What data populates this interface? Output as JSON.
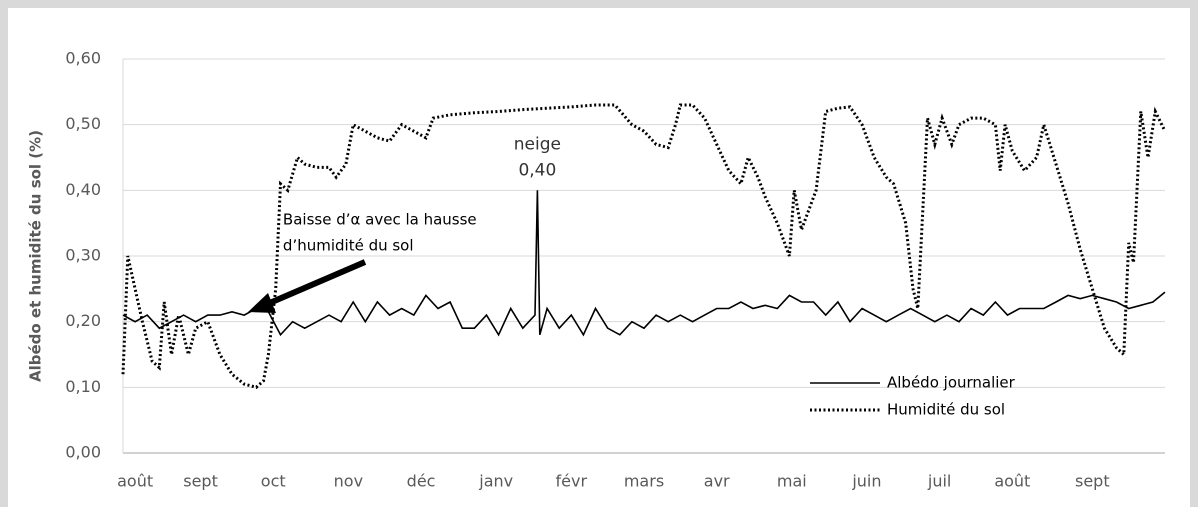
{
  "chart_data": {
    "type": "line",
    "ylabel": "Albédo et humidité du sol (%)",
    "xlim": [
      0,
      430
    ],
    "xticks": [
      {
        "value": 5,
        "label": "août"
      },
      {
        "value": 32,
        "label": "sept"
      },
      {
        "value": 62,
        "label": "oct"
      },
      {
        "value": 93,
        "label": "nov"
      },
      {
        "value": 123,
        "label": "déc"
      },
      {
        "value": 154,
        "label": "janv"
      },
      {
        "value": 185,
        "label": "févr"
      },
      {
        "value": 215,
        "label": "mars"
      },
      {
        "value": 245,
        "label": "avr"
      },
      {
        "value": 276,
        "label": "mai"
      },
      {
        "value": 307,
        "label": "juin"
      },
      {
        "value": 337,
        "label": "juil"
      },
      {
        "value": 367,
        "label": "août"
      },
      {
        "value": 400,
        "label": "sept"
      }
    ],
    "ylim": [
      0,
      0.6
    ],
    "yticks": [
      {
        "value": 0,
        "label": "0,00"
      },
      {
        "value": 0.1,
        "label": "0,10"
      },
      {
        "value": 0.2,
        "label": "0,20"
      },
      {
        "value": 0.3,
        "label": "0,30"
      },
      {
        "value": 0.4,
        "label": "0,40"
      },
      {
        "value": 0.5,
        "label": "0,50"
      },
      {
        "value": 0.6,
        "label": "0,60"
      }
    ],
    "grid": true,
    "legend": "lower right",
    "series": [
      {
        "name": "Albédo journalier",
        "color": "#000000",
        "style": "solid",
        "x": [
          0,
          5,
          10,
          15,
          20,
          25,
          30,
          35,
          40,
          45,
          50,
          55,
          60,
          65,
          70,
          75,
          80,
          85,
          90,
          95,
          100,
          105,
          110,
          115,
          120,
          125,
          130,
          135,
          140,
          145,
          150,
          155,
          160,
          165,
          170,
          171,
          172,
          175,
          180,
          185,
          190,
          195,
          200,
          205,
          210,
          215,
          220,
          225,
          230,
          235,
          240,
          245,
          250,
          255,
          260,
          265,
          270,
          275,
          280,
          285,
          290,
          295,
          300,
          305,
          310,
          315,
          320,
          325,
          330,
          335,
          340,
          345,
          350,
          355,
          360,
          365,
          370,
          375,
          380,
          385,
          390,
          395,
          400,
          405,
          410,
          415,
          420,
          425,
          430
        ],
        "values": [
          0.21,
          0.2,
          0.21,
          0.19,
          0.2,
          0.21,
          0.2,
          0.21,
          0.21,
          0.215,
          0.21,
          0.22,
          0.215,
          0.18,
          0.2,
          0.19,
          0.2,
          0.21,
          0.2,
          0.23,
          0.2,
          0.23,
          0.21,
          0.22,
          0.21,
          0.24,
          0.22,
          0.23,
          0.19,
          0.19,
          0.21,
          0.18,
          0.22,
          0.19,
          0.21,
          0.4,
          0.18,
          0.22,
          0.19,
          0.21,
          0.18,
          0.22,
          0.19,
          0.18,
          0.2,
          0.19,
          0.21,
          0.2,
          0.21,
          0.2,
          0.21,
          0.22,
          0.22,
          0.23,
          0.22,
          0.225,
          0.22,
          0.24,
          0.23,
          0.23,
          0.21,
          0.23,
          0.2,
          0.22,
          0.21,
          0.2,
          0.21,
          0.22,
          0.21,
          0.2,
          0.21,
          0.2,
          0.22,
          0.21,
          0.23,
          0.21,
          0.22,
          0.22,
          0.22,
          0.23,
          0.24,
          0.235,
          0.24,
          0.235,
          0.23,
          0.22,
          0.225,
          0.23,
          0.245
        ]
      },
      {
        "name": "Humidité du sol",
        "color": "#000000",
        "style": "dotted",
        "x": [
          0,
          2,
          5,
          8,
          12,
          15,
          17,
          20,
          23,
          27,
          30,
          35,
          40,
          45,
          50,
          55,
          58,
          60,
          63,
          65,
          68,
          72,
          75,
          80,
          85,
          88,
          92,
          95,
          100,
          105,
          110,
          115,
          120,
          125,
          128,
          135,
          145,
          155,
          165,
          175,
          185,
          195,
          203,
          210,
          215,
          220,
          225,
          228,
          230,
          235,
          240,
          245,
          250,
          255,
          258,
          262,
          265,
          270,
          275,
          277,
          280,
          283,
          286,
          290,
          295,
          300,
          305,
          310,
          315,
          318,
          323,
          326,
          328,
          332,
          335,
          338,
          342,
          345,
          350,
          355,
          360,
          362,
          364,
          367,
          372,
          377,
          380,
          385,
          390,
          395,
          400,
          405,
          410,
          413,
          415,
          417,
          420,
          423,
          426,
          430
        ],
        "values": [
          0.12,
          0.3,
          0.25,
          0.2,
          0.14,
          0.13,
          0.23,
          0.15,
          0.21,
          0.15,
          0.19,
          0.2,
          0.15,
          0.12,
          0.105,
          0.1,
          0.11,
          0.15,
          0.25,
          0.41,
          0.4,
          0.45,
          0.44,
          0.435,
          0.435,
          0.42,
          0.44,
          0.5,
          0.49,
          0.48,
          0.475,
          0.5,
          0.49,
          0.48,
          0.51,
          0.515,
          0.518,
          0.52,
          0.523,
          0.525,
          0.527,
          0.53,
          0.53,
          0.5,
          0.49,
          0.47,
          0.465,
          0.5,
          0.53,
          0.53,
          0.51,
          0.47,
          0.43,
          0.41,
          0.45,
          0.42,
          0.39,
          0.35,
          0.3,
          0.4,
          0.34,
          0.37,
          0.4,
          0.52,
          0.525,
          0.527,
          0.5,
          0.45,
          0.42,
          0.41,
          0.35,
          0.25,
          0.22,
          0.51,
          0.47,
          0.51,
          0.47,
          0.5,
          0.51,
          0.51,
          0.5,
          0.43,
          0.5,
          0.46,
          0.43,
          0.45,
          0.5,
          0.44,
          0.38,
          0.31,
          0.25,
          0.19,
          0.16,
          0.15,
          0.32,
          0.29,
          0.52,
          0.45,
          0.52,
          0.49
        ]
      }
    ],
    "annotations": [
      {
        "text": "neige",
        "x": 171,
        "y": 0.47
      },
      {
        "text": "0,40",
        "x": 171,
        "y": 0.43
      },
      {
        "text": "Baisse d’α avec la hausse",
        "x": 66,
        "y": 0.355
      },
      {
        "text": "d’humidité du sol",
        "x": 66,
        "y": 0.315
      }
    ]
  }
}
